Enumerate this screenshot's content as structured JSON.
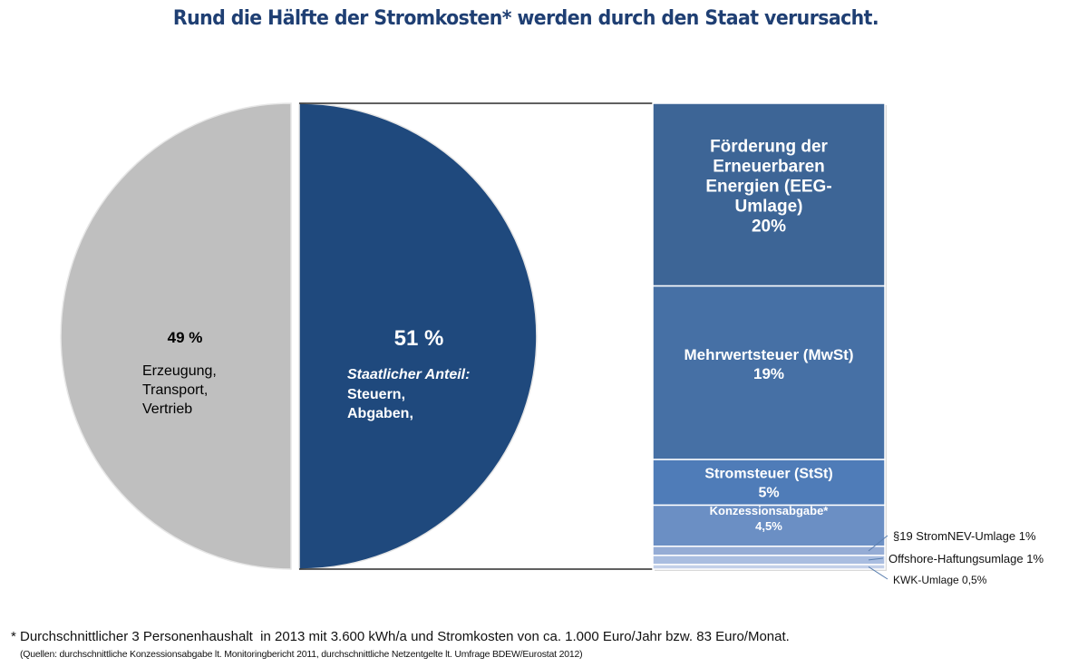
{
  "title": "Rund die Hälfte der Stromkosten* werden durch den Staat verursacht.",
  "colors": {
    "title": "#1f3f73",
    "pie_private": "#bfbfbf",
    "pie_state": "#1f497d",
    "bar_segments": [
      "#3d6596",
      "#4670a5",
      "#4f7cb8",
      "#6b8fc4",
      "#95acd5",
      "#a9bde0",
      "#c3d0e9"
    ]
  },
  "chart_data": [
    {
      "type": "pie",
      "title": "",
      "slices": [
        {
          "name": "Erzeugung, Transport, Vertrieb",
          "value": 49,
          "value_label": "49 %",
          "lines": [
            "Erzeugung,",
            "Transport,",
            "Vertrieb"
          ]
        },
        {
          "name": "Staatlicher Anteil: Steuern, Abgaben",
          "value": 51,
          "value_label": "51 %",
          "subtitle": "Staatlicher Anteil:",
          "lines": [
            "Steuern,",
            "Abgaben,"
          ]
        }
      ]
    },
    {
      "type": "bar",
      "stacked": true,
      "title": "Breakdown of state share",
      "total": 51,
      "unit": "%",
      "segments": [
        {
          "name": "Förderung der Erneuerbaren Energien (EEG-Umlage)",
          "value": 20,
          "lines": [
            "Förderung der",
            "Erneuerbaren",
            "Energien (EEG-",
            "Umlage)",
            "20%"
          ],
          "placement": "inside"
        },
        {
          "name": "Mehrwertsteuer (MwSt)",
          "value": 19,
          "lines": [
            "Mehrwertsteuer (MwSt)",
            "19%"
          ],
          "placement": "inside"
        },
        {
          "name": "Stromsteuer (StSt)",
          "value": 5,
          "lines": [
            "Stromsteuer (StSt)",
            "5%"
          ],
          "placement": "inside"
        },
        {
          "name": "Konzessionsabgabe*",
          "value": 4.5,
          "lines": [
            "Konzessionsabgabe*",
            "4,5%"
          ],
          "placement": "inside"
        },
        {
          "name": "§19 StromNEV-Umlage",
          "value": 1,
          "lines": [
            "§19 StromNEV-Umlage  1%"
          ],
          "placement": "outside"
        },
        {
          "name": "Offshore-Haftungsumlage",
          "value": 1,
          "lines": [
            "Offshore-Haftungsumlage  1%"
          ],
          "placement": "outside"
        },
        {
          "name": "KWK-Umlage",
          "value": 0.5,
          "lines": [
            "KWK-Umlage 0,5%"
          ],
          "placement": "outside"
        }
      ]
    }
  ],
  "footnote": "* Durchschnittlicher 3 Personenhaushalt  in 2013 mit 3.600 kWh/a und Stromkosten von ca. 1.000 Euro/Jahr bzw. 83 Euro/Monat.",
  "sources": "(Quellen: durchschnittliche Konzessionsabgabe lt. Monitoringbericht 2011, durchschnittliche Netzentgelte lt. Umfrage BDEW/Eurostat 2012)"
}
